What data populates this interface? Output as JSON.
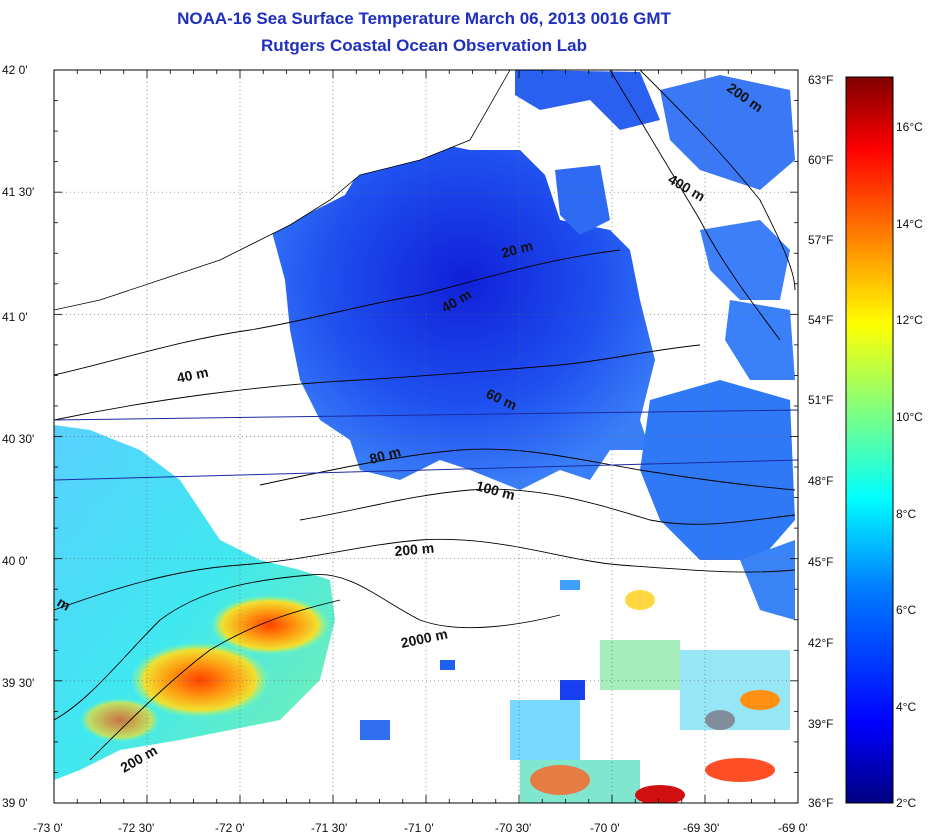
{
  "title": "NOAA-16 Sea Surface Temperature March 06, 2013 0016 GMT",
  "subtitle": "Rutgers Coastal Ocean Observation Lab",
  "axes": {
    "lat_labels": [
      "42 0'",
      "41 30'",
      "41 0'",
      "40 30'",
      "40 0'",
      "39 30'",
      "39 0'"
    ],
    "lon_labels": [
      "-73 0'",
      "-72 30'",
      "-72 0'",
      "-71 30'",
      "-71 0'",
      "-70 30'",
      "-70 0'",
      "-69 30'",
      "-69 0'"
    ],
    "fahrenheit_labels": [
      "63°F",
      "60°F",
      "57°F",
      "54°F",
      "51°F",
      "48°F",
      "45°F",
      "42°F",
      "39°F",
      "36°F"
    ]
  },
  "colorbar": {
    "celsius_labels": [
      "16°C",
      "14°C",
      "12°C",
      "10°C",
      "8°C",
      "6°C",
      "4°C",
      "2°C"
    ],
    "colors": [
      "#00007f",
      "#0000ff",
      "#0080ff",
      "#00ffff",
      "#80ff80",
      "#ffff00",
      "#ff8000",
      "#ff0000",
      "#7f0000"
    ]
  },
  "contours": {
    "labels": [
      "20 m",
      "40 m",
      "40 m",
      "60 m",
      "80 m",
      "100 m",
      "200 m",
      "2000 m",
      "200 m",
      "400 m",
      "200 m",
      "m"
    ]
  },
  "colors": {
    "title": "#1f2fbf",
    "land": "#ffffff",
    "cloud": "#ffffff"
  }
}
